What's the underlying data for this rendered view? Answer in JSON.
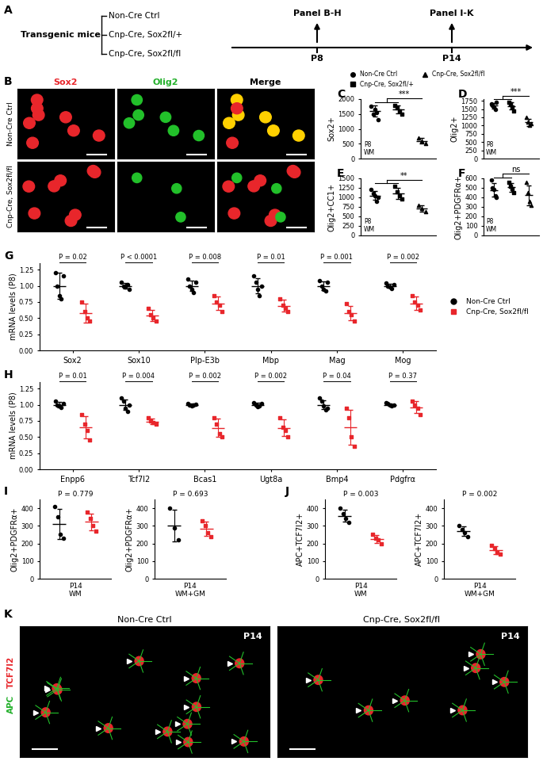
{
  "diagram": {
    "panel": "A",
    "left_label": "Transgenic mice",
    "groups": [
      "Non-Cre Ctrl",
      "Cnp-Cre, Sox2fl/+",
      "Cnp-Cre, Sox2fl/fl"
    ],
    "timepoints": [
      {
        "label": "P8",
        "target": "Panel B-H"
      },
      {
        "label": "P14",
        "target": "Panel I-K"
      }
    ]
  },
  "images": {
    "B": {
      "panel": "B",
      "columns": [
        {
          "text": "Sox2",
          "color": "#e8262b"
        },
        {
          "text": "Olig2",
          "color": "#22b02a"
        },
        {
          "text": "Merge",
          "color": "#000000"
        }
      ],
      "rows": [
        "Non-Cre Ctrl",
        "Cnp-Cre, Sox2fl/fl"
      ]
    },
    "K": {
      "panel": "K",
      "columns": [
        "Non-Cre Ctrl",
        "Cnp-Cre, Sox2fl/fl"
      ],
      "stage": "P14",
      "stains": [
        {
          "text": "APC",
          "color": "#22b02a"
        },
        {
          "text": "TCF7l2",
          "color": "#e8262b"
        }
      ]
    }
  },
  "chart_data": [
    {
      "panel": "C",
      "type": "scatter",
      "ylabel": "Sox2+",
      "annotation": "P8\nWM",
      "legend": "top",
      "ylim": [
        0,
        2000
      ],
      "yticks": [
        0,
        500,
        1000,
        1500,
        2000
      ],
      "tick_labels": "y",
      "significance": {
        "text": "***",
        "from": [
          0,
          1
        ],
        "to": 2
      },
      "series": [
        {
          "name": "Non-Cre Ctrl",
          "color": "#000000",
          "marker": "circle",
          "values": [
            1750,
            1500,
            1650,
            1550,
            1300
          ],
          "mean": 1600,
          "sd": 180
        },
        {
          "name": "Cnp-Cre, Sox2fl/+",
          "color": "#000000",
          "marker": "square",
          "values": [
            1800,
            1700,
            1600,
            1500
          ],
          "mean": 1650,
          "sd": 130
        },
        {
          "name": "Cnp-Cre, Sox2fl/fl",
          "color": "#000000",
          "marker": "triangle",
          "values": [
            700,
            600,
            500
          ],
          "mean": 600,
          "sd": 100
        }
      ]
    },
    {
      "panel": "D",
      "type": "scatter",
      "ylabel": "Olig2+",
      "annotation": "P8\nWM",
      "ylim": [
        0,
        1800
      ],
      "yticks": [
        0,
        250,
        500,
        750,
        1000,
        1250,
        1500,
        1750
      ],
      "tick_labels": "y",
      "significance": {
        "text": "***",
        "from": [
          0,
          1
        ],
        "to": 2
      },
      "series": [
        {
          "name": "Non-Cre Ctrl",
          "color": "#000000",
          "marker": "circle",
          "values": [
            1650,
            1600,
            1550,
            1500,
            1700
          ],
          "mean": 1600,
          "sd": 80
        },
        {
          "name": "Cnp-Cre, Sox2fl/+",
          "color": "#000000",
          "marker": "square",
          "values": [
            1700,
            1650,
            1550,
            1450
          ],
          "mean": 1590,
          "sd": 110
        },
        {
          "name": "Cnp-Cre, Sox2fl/fl",
          "color": "#000000",
          "marker": "triangle",
          "values": [
            1250,
            1100,
            1000,
            1050
          ],
          "mean": 1100,
          "sd": 110
        }
      ]
    },
    {
      "panel": "E",
      "type": "scatter",
      "ylabel": "Olig2+CC1+",
      "annotation": "P8\nWM",
      "ylim": [
        0,
        1500
      ],
      "yticks": [
        0,
        250,
        500,
        750,
        1000,
        1250,
        1500
      ],
      "tick_labels": "y",
      "significance": {
        "text": "**",
        "from": [
          0,
          1
        ],
        "to": 2
      },
      "series": [
        {
          "name": "Non-Cre Ctrl",
          "color": "#000000",
          "marker": "circle",
          "values": [
            1200,
            1100,
            1050,
            900,
            1000
          ],
          "mean": 1050,
          "sd": 110
        },
        {
          "name": "Cnp-Cre, Sox2fl/+",
          "color": "#000000",
          "marker": "square",
          "values": [
            1300,
            1150,
            1050,
            950
          ],
          "mean": 1110,
          "sd": 150
        },
        {
          "name": "Cnp-Cre, Sox2fl/fl",
          "color": "#000000",
          "marker": "triangle",
          "values": [
            800,
            700,
            620
          ],
          "mean": 707,
          "sd": 90
        }
      ]
    },
    {
      "panel": "F",
      "type": "scatter",
      "ylabel": "Olig2+PDGFRα+",
      "annotation": "P8\nWM",
      "ylim": [
        0,
        600
      ],
      "yticks": [
        0,
        100,
        200,
        300,
        400,
        500,
        600
      ],
      "tick_labels": "y",
      "significance": {
        "text": "ns",
        "from": [
          0,
          1
        ],
        "to": 2
      },
      "series": [
        {
          "name": "Non-Cre Ctrl",
          "color": "#000000",
          "marker": "circle",
          "values": [
            580,
            500,
            480,
            420,
            400
          ],
          "mean": 476,
          "sd": 70
        },
        {
          "name": "Cnp-Cre, Sox2fl/+",
          "color": "#000000",
          "marker": "square",
          "values": [
            560,
            520,
            490,
            450
          ],
          "mean": 505,
          "sd": 46
        },
        {
          "name": "Cnp-Cre, Sox2fl/fl",
          "color": "#000000",
          "marker": "triangle",
          "values": [
            560,
            450,
            360,
            320
          ],
          "mean": 422,
          "sd": 105
        }
      ]
    },
    {
      "panel": "G",
      "type": "scatter",
      "ylabel": "mRNA levels (P8)",
      "legend": "right",
      "categories": [
        "Sox2",
        "Sox10",
        "Plp-E3b",
        "Mbp",
        "Mag",
        "Mog"
      ],
      "p_labels": [
        "P = 0.02",
        "P < 0.0001",
        "P = 0.008",
        "P = 0.01",
        "P = 0.001",
        "P = 0.002"
      ],
      "ylim": [
        0,
        1.35
      ],
      "yticks": [
        {
          "value": 0,
          "label": "0.00"
        },
        {
          "value": 0.25,
          "label": "0.25"
        },
        {
          "value": 0.5,
          "label": "0.50"
        },
        {
          "value": 0.75,
          "label": "0.75"
        },
        {
          "value": 1.0,
          "label": "1.00"
        },
        {
          "value": 1.25,
          "label": "1.25"
        }
      ],
      "series": [
        {
          "name": "Non-Cre Ctrl",
          "color": "#000000",
          "marker": "circle",
          "values": [
            [
              1.2,
              1.0,
              0.85,
              0.8,
              1.15
            ],
            [
              1.05,
              1.0,
              0.98,
              1.02,
              0.95
            ],
            [
              1.1,
              1.0,
              0.95,
              0.9,
              1.05
            ],
            [
              1.15,
              1.05,
              0.95,
              0.85,
              1.0
            ],
            [
              1.08,
              1.0,
              0.95,
              0.92,
              1.05
            ],
            [
              1.04,
              1.0,
              0.98,
              0.96,
              1.02
            ]
          ],
          "mean": [
            1.0,
            1.0,
            1.0,
            1.0,
            1.0,
            1.0
          ],
          "sd": [
            0.2,
            0.04,
            0.08,
            0.12,
            0.07,
            0.03
          ]
        },
        {
          "name": "Cnp-Cre, Sox2fl/fl",
          "color": "#e8262b",
          "marker": "square",
          "values": [
            [
              0.75,
              0.6,
              0.5,
              0.45
            ],
            [
              0.65,
              0.55,
              0.5,
              0.45
            ],
            [
              0.85,
              0.75,
              0.7,
              0.6
            ],
            [
              0.8,
              0.7,
              0.65,
              0.6
            ],
            [
              0.72,
              0.6,
              0.55,
              0.45
            ],
            [
              0.85,
              0.75,
              0.7,
              0.62
            ]
          ],
          "mean": [
            0.58,
            0.54,
            0.73,
            0.69,
            0.58,
            0.73
          ],
          "sd": [
            0.15,
            0.09,
            0.1,
            0.09,
            0.11,
            0.1
          ]
        }
      ]
    },
    {
      "panel": "H",
      "type": "scatter",
      "ylabel": "mRNA levels (P8)",
      "categories": [
        "Enpp6",
        "Tcf7l2",
        "Bcas1",
        "Ugt8a",
        "Bmp4",
        "Pdgfrα"
      ],
      "p_labels": [
        "P = 0.01",
        "P = 0.004",
        "P = 0.002",
        "P = 0.002",
        "P = 0.04",
        "P = 0.37"
      ],
      "ylim": [
        0,
        1.35
      ],
      "yticks": [
        {
          "value": 0,
          "label": "0.00"
        },
        {
          "value": 0.25,
          "label": "0.25"
        },
        {
          "value": 0.5,
          "label": "0.50"
        },
        {
          "value": 0.75,
          "label": "0.75"
        },
        {
          "value": 1.0,
          "label": "1.00"
        },
        {
          "value": 1.25,
          "label": "1.25"
        }
      ],
      "series": [
        {
          "name": "Non-Cre Ctrl",
          "color": "#000000",
          "marker": "circle",
          "values": [
            [
              1.05,
              1.0,
              0.98,
              0.96,
              1.02
            ],
            [
              1.1,
              1.05,
              0.95,
              0.9,
              1.0
            ],
            [
              1.02,
              1.0,
              0.98,
              0.99,
              1.01
            ],
            [
              1.03,
              1.0,
              0.97,
              0.98,
              1.02
            ],
            [
              1.1,
              1.05,
              0.98,
              0.92,
              0.95
            ],
            [
              1.03,
              1.02,
              1.0,
              0.98,
              0.99
            ]
          ],
          "mean": [
            1.0,
            1.0,
            1.0,
            1.0,
            1.0,
            1.0
          ],
          "sd": [
            0.04,
            0.08,
            0.02,
            0.03,
            0.07,
            0.02
          ]
        },
        {
          "name": "Cnp-Cre, Sox2fl/fl",
          "color": "#e8262b",
          "marker": "square",
          "values": [
            [
              0.85,
              0.7,
              0.6,
              0.45
            ],
            [
              0.8,
              0.75,
              0.72,
              0.7
            ],
            [
              0.8,
              0.7,
              0.55,
              0.5
            ],
            [
              0.8,
              0.65,
              0.6,
              0.5
            ],
            [
              0.95,
              0.8,
              0.5,
              0.35
            ],
            [
              1.05,
              1.0,
              0.95,
              0.85
            ]
          ],
          "mean": [
            0.65,
            0.74,
            0.64,
            0.64,
            0.65,
            0.96
          ],
          "sd": [
            0.17,
            0.04,
            0.14,
            0.13,
            0.27,
            0.09
          ]
        }
      ]
    },
    {
      "panel": "I",
      "type": "scatter",
      "ylabel": "Olig2+PDGFRα+",
      "annotation": "P14\nWM",
      "p_label": "P = 0.779",
      "ylim": [
        0,
        450
      ],
      "yticks": [
        0,
        100,
        200,
        300,
        400
      ],
      "tick_labels": "y",
      "series": [
        {
          "name": "Non-Cre Ctrl",
          "color": "#000000",
          "marker": "circle",
          "values": [
            410,
            350,
            250,
            230
          ],
          "mean": 310,
          "sd": 85
        },
        {
          "name": "Cnp-Cre, Sox2fl/fl",
          "color": "#e8262b",
          "marker": "square",
          "values": [
            380,
            340,
            300,
            270
          ],
          "mean": 322,
          "sd": 48
        }
      ]
    },
    {
      "type": "scatter",
      "ylabel": "Olig2+PDGFRα+",
      "annotation": "P14\nWM+GM",
      "p_label": "P = 0.693",
      "ylim": [
        0,
        450
      ],
      "yticks": [
        0,
        100,
        200,
        300,
        400
      ],
      "tick_labels": "y",
      "series": [
        {
          "name": "Non-Cre Ctrl",
          "color": "#000000",
          "marker": "circle",
          "values": [
            400,
            290,
            220
          ],
          "mean": 303,
          "sd": 90
        },
        {
          "name": "Cnp-Cre, Sox2fl/fl",
          "color": "#e8262b",
          "marker": "square",
          "values": [
            330,
            300,
            260,
            240
          ],
          "mean": 282,
          "sd": 40
        }
      ]
    },
    {
      "panel": "J",
      "type": "scatter",
      "ylabel": "APC+TCF7l2+",
      "annotation": "P14\nWM",
      "p_label": "P = 0.003",
      "ylim": [
        0,
        450
      ],
      "yticks": [
        0,
        100,
        200,
        300,
        400
      ],
      "tick_labels": "y",
      "series": [
        {
          "name": "Non-Cre Ctrl",
          "color": "#000000",
          "marker": "circle",
          "values": [
            400,
            370,
            340,
            320
          ],
          "mean": 357,
          "sd": 35
        },
        {
          "name": "Cnp-Cre, Sox2fl/fl",
          "color": "#e8262b",
          "marker": "square",
          "values": [
            250,
            230,
            220,
            200
          ],
          "mean": 225,
          "sd": 21
        }
      ]
    },
    {
      "type": "scatter",
      "ylabel": "APC+TCF7l2+",
      "annotation": "P14\nWM+GM",
      "p_label": "P = 0.002",
      "ylim": [
        0,
        450
      ],
      "yticks": [
        0,
        100,
        200,
        300,
        400
      ],
      "tick_labels": "y",
      "series": [
        {
          "name": "Non-Cre Ctrl",
          "color": "#000000",
          "marker": "circle",
          "values": [
            300,
            280,
            260,
            240
          ],
          "mean": 270,
          "sd": 26
        },
        {
          "name": "Cnp-Cre, Sox2fl/fl",
          "color": "#e8262b",
          "marker": "square",
          "values": [
            190,
            170,
            150,
            140
          ],
          "mean": 162,
          "sd": 22
        }
      ]
    }
  ]
}
